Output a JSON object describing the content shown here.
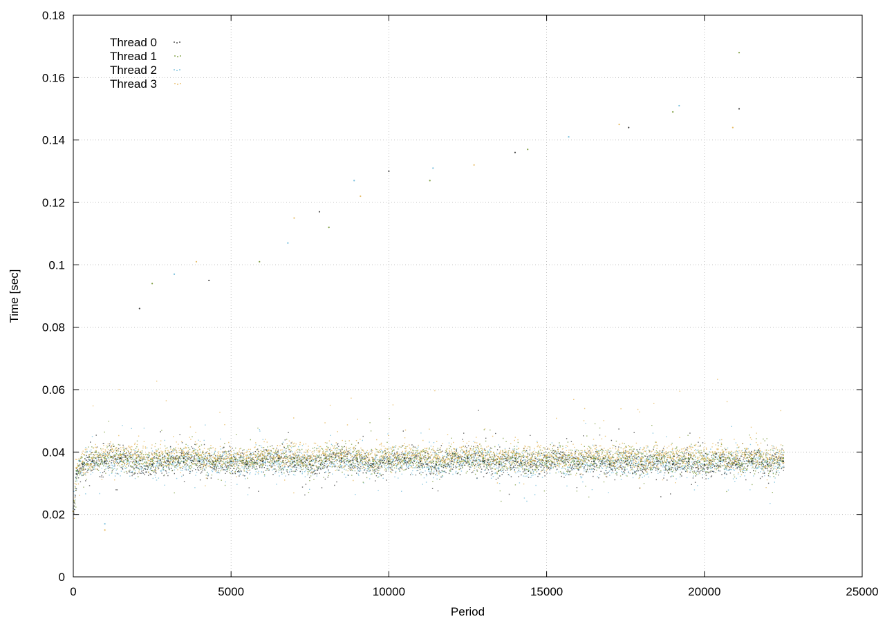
{
  "chart_data": {
    "type": "scatter",
    "title": "",
    "xlabel": "Period",
    "ylabel": "Time [sec]",
    "xlim": [
      0,
      25000
    ],
    "ylim": [
      0,
      0.18
    ],
    "xticks": [
      "0",
      "5000",
      "10000",
      "15000",
      "20000",
      "25000"
    ],
    "yticks": [
      "0",
      "0.02",
      "0.04",
      "0.06",
      "0.08",
      "0.1",
      "0.12",
      "0.14",
      "0.16",
      "0.18"
    ],
    "xtick_values": [
      0,
      5000,
      10000,
      15000,
      20000,
      25000
    ],
    "ytick_values": [
      0,
      0.02,
      0.04,
      0.06,
      0.08,
      0.1,
      0.12,
      0.14,
      0.16,
      0.18
    ],
    "grid": true,
    "legend_position": "top-left",
    "series": [
      {
        "name": "Thread 0",
        "color": "#222222",
        "x": [
          0,
          100,
          300,
          600,
          1000,
          1500,
          2000,
          2500,
          3000,
          3500,
          4000,
          4500,
          5000,
          5500,
          6000,
          6500,
          7000,
          7500,
          8000,
          8500,
          9000,
          9500,
          10000,
          10500,
          11000,
          11500,
          12000,
          12500,
          13000,
          13500,
          14000,
          14500,
          15000,
          15500,
          16000,
          16500,
          17000,
          17500,
          18000,
          18500,
          19000,
          19500,
          20000,
          20500,
          21000,
          21500,
          22000,
          22500
        ],
        "y": [
          0.021,
          0.033,
          0.036,
          0.037,
          0.037,
          0.038,
          0.037,
          0.036,
          0.037,
          0.038,
          0.037,
          0.036,
          0.037,
          0.036,
          0.037,
          0.038,
          0.037,
          0.036,
          0.037,
          0.038,
          0.037,
          0.036,
          0.037,
          0.038,
          0.037,
          0.036,
          0.037,
          0.038,
          0.037,
          0.036,
          0.037,
          0.036,
          0.037,
          0.038,
          0.036,
          0.037,
          0.036,
          0.037,
          0.036,
          0.037,
          0.036,
          0.037,
          0.036,
          0.037,
          0.036,
          0.037,
          0.036,
          0.037
        ]
      },
      {
        "name": "Thread 1",
        "color": "#6b8e23",
        "x": [
          0,
          100,
          300,
          600,
          1000,
          1500,
          2000,
          2500,
          3000,
          3500,
          4000,
          4500,
          5000,
          5500,
          6000,
          6500,
          7000,
          7500,
          8000,
          8500,
          9000,
          9500,
          10000,
          10500,
          11000,
          11500,
          12000,
          12500,
          13000,
          13500,
          14000,
          14500,
          15000,
          15500,
          16000,
          16500,
          17000,
          17500,
          18000,
          18500,
          19000,
          19500,
          20000,
          20500,
          21000,
          21500,
          22000,
          22500
        ],
        "y": [
          0.021,
          0.034,
          0.036,
          0.038,
          0.038,
          0.038,
          0.038,
          0.037,
          0.038,
          0.038,
          0.038,
          0.037,
          0.038,
          0.037,
          0.038,
          0.038,
          0.038,
          0.037,
          0.038,
          0.038,
          0.038,
          0.037,
          0.038,
          0.038,
          0.038,
          0.037,
          0.038,
          0.038,
          0.038,
          0.037,
          0.038,
          0.037,
          0.038,
          0.038,
          0.037,
          0.038,
          0.037,
          0.038,
          0.037,
          0.038,
          0.037,
          0.038,
          0.037,
          0.038,
          0.037,
          0.038,
          0.037,
          0.038
        ]
      },
      {
        "name": "Thread 2",
        "color": "#5fb3d6",
        "x": [
          0,
          100,
          300,
          600,
          1000,
          1500,
          2000,
          2500,
          3000,
          3500,
          4000,
          4500,
          5000,
          5500,
          6000,
          6500,
          7000,
          7500,
          8000,
          8500,
          9000,
          9500,
          10000,
          10500,
          11000,
          11500,
          12000,
          12500,
          13000,
          13500,
          14000,
          14500,
          15000,
          15500,
          16000,
          16500,
          17000,
          17500,
          18000,
          18500,
          19000,
          19500,
          20000,
          20500,
          21000,
          21500,
          22000,
          22500
        ],
        "y": [
          0.022,
          0.034,
          0.036,
          0.037,
          0.037,
          0.037,
          0.037,
          0.036,
          0.037,
          0.037,
          0.037,
          0.036,
          0.037,
          0.036,
          0.037,
          0.037,
          0.037,
          0.036,
          0.037,
          0.037,
          0.037,
          0.036,
          0.037,
          0.037,
          0.037,
          0.036,
          0.037,
          0.037,
          0.037,
          0.036,
          0.037,
          0.036,
          0.037,
          0.037,
          0.036,
          0.037,
          0.036,
          0.037,
          0.036,
          0.037,
          0.036,
          0.037,
          0.036,
          0.037,
          0.036,
          0.037,
          0.036,
          0.037
        ]
      },
      {
        "name": "Thread 3",
        "color": "#e3b04b",
        "x": [
          0,
          100,
          300,
          600,
          1000,
          1500,
          2000,
          2500,
          3000,
          3500,
          4000,
          4500,
          5000,
          5500,
          6000,
          6500,
          7000,
          7500,
          8000,
          8500,
          9000,
          9500,
          10000,
          10500,
          11000,
          11500,
          12000,
          12500,
          13000,
          13500,
          14000,
          14500,
          15000,
          15500,
          16000,
          16500,
          17000,
          17500,
          18000,
          18500,
          19000,
          19500,
          20000,
          20500,
          21000,
          21500,
          22000,
          22500
        ],
        "y": [
          0.021,
          0.035,
          0.037,
          0.038,
          0.039,
          0.039,
          0.039,
          0.038,
          0.039,
          0.039,
          0.039,
          0.038,
          0.039,
          0.038,
          0.039,
          0.039,
          0.039,
          0.038,
          0.039,
          0.039,
          0.039,
          0.038,
          0.039,
          0.039,
          0.039,
          0.038,
          0.039,
          0.039,
          0.039,
          0.038,
          0.039,
          0.038,
          0.039,
          0.039,
          0.038,
          0.039,
          0.038,
          0.039,
          0.038,
          0.039,
          0.038,
          0.039,
          0.038,
          0.039,
          0.038,
          0.039,
          0.038,
          0.039
        ]
      }
    ],
    "outliers": [
      {
        "x": 2100,
        "y": 0.086
      },
      {
        "x": 2500,
        "y": 0.094
      },
      {
        "x": 3200,
        "y": 0.097
      },
      {
        "x": 3900,
        "y": 0.101
      },
      {
        "x": 4300,
        "y": 0.095
      },
      {
        "x": 5900,
        "y": 0.101
      },
      {
        "x": 6800,
        "y": 0.107
      },
      {
        "x": 7000,
        "y": 0.115
      },
      {
        "x": 7800,
        "y": 0.117
      },
      {
        "x": 8100,
        "y": 0.112
      },
      {
        "x": 8900,
        "y": 0.127
      },
      {
        "x": 9100,
        "y": 0.122
      },
      {
        "x": 10000,
        "y": 0.13
      },
      {
        "x": 11300,
        "y": 0.127
      },
      {
        "x": 11400,
        "y": 0.131
      },
      {
        "x": 12700,
        "y": 0.132
      },
      {
        "x": 14000,
        "y": 0.136
      },
      {
        "x": 14400,
        "y": 0.137
      },
      {
        "x": 15700,
        "y": 0.141
      },
      {
        "x": 17300,
        "y": 0.145
      },
      {
        "x": 17600,
        "y": 0.144
      },
      {
        "x": 19000,
        "y": 0.149
      },
      {
        "x": 19200,
        "y": 0.151
      },
      {
        "x": 20900,
        "y": 0.144
      },
      {
        "x": 21100,
        "y": 0.15
      },
      {
        "x": 21100,
        "y": 0.168
      },
      {
        "x": 1000,
        "y": 0.017
      },
      {
        "x": 1000,
        "y": 0.015
      }
    ]
  }
}
